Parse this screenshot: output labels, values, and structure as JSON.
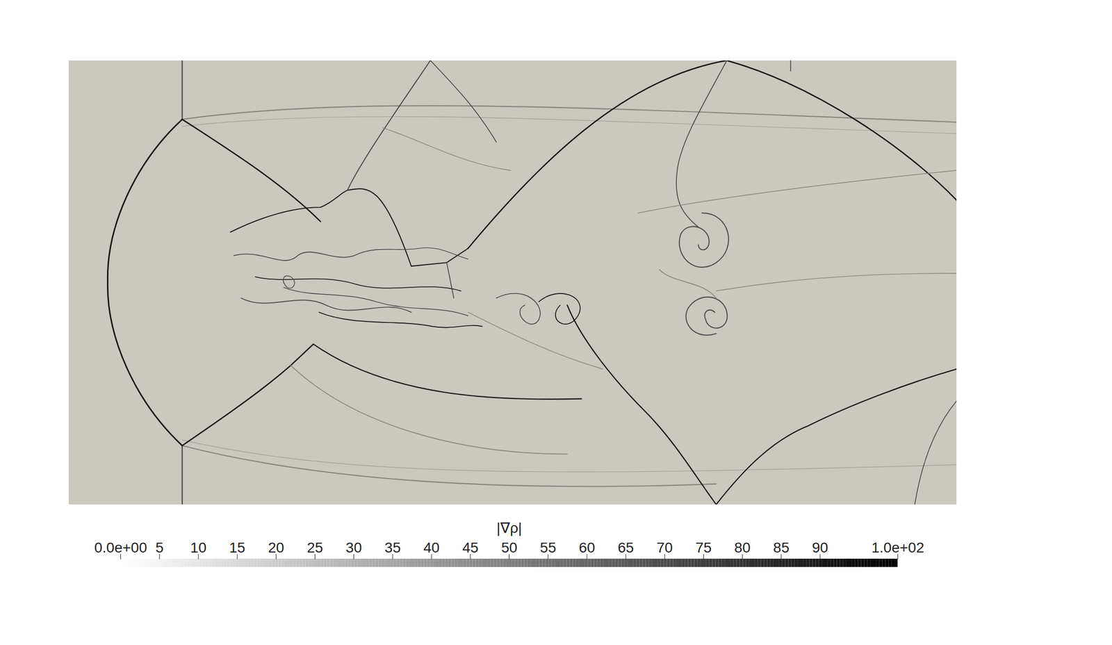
{
  "chart_data": {
    "type": "heatmap",
    "tick_labels": false,
    "colorbar": {
      "label": "|∇ρ|",
      "range": [
        0,
        100
      ],
      "ticks": [
        {
          "value": 0,
          "label": "0.0e+00"
        },
        5,
        10,
        15,
        20,
        25,
        30,
        35,
        40,
        45,
        50,
        55,
        60,
        65,
        70,
        75,
        80,
        85,
        90,
        {
          "value": 100,
          "label": "1.0e+02"
        }
      ]
    }
  }
}
